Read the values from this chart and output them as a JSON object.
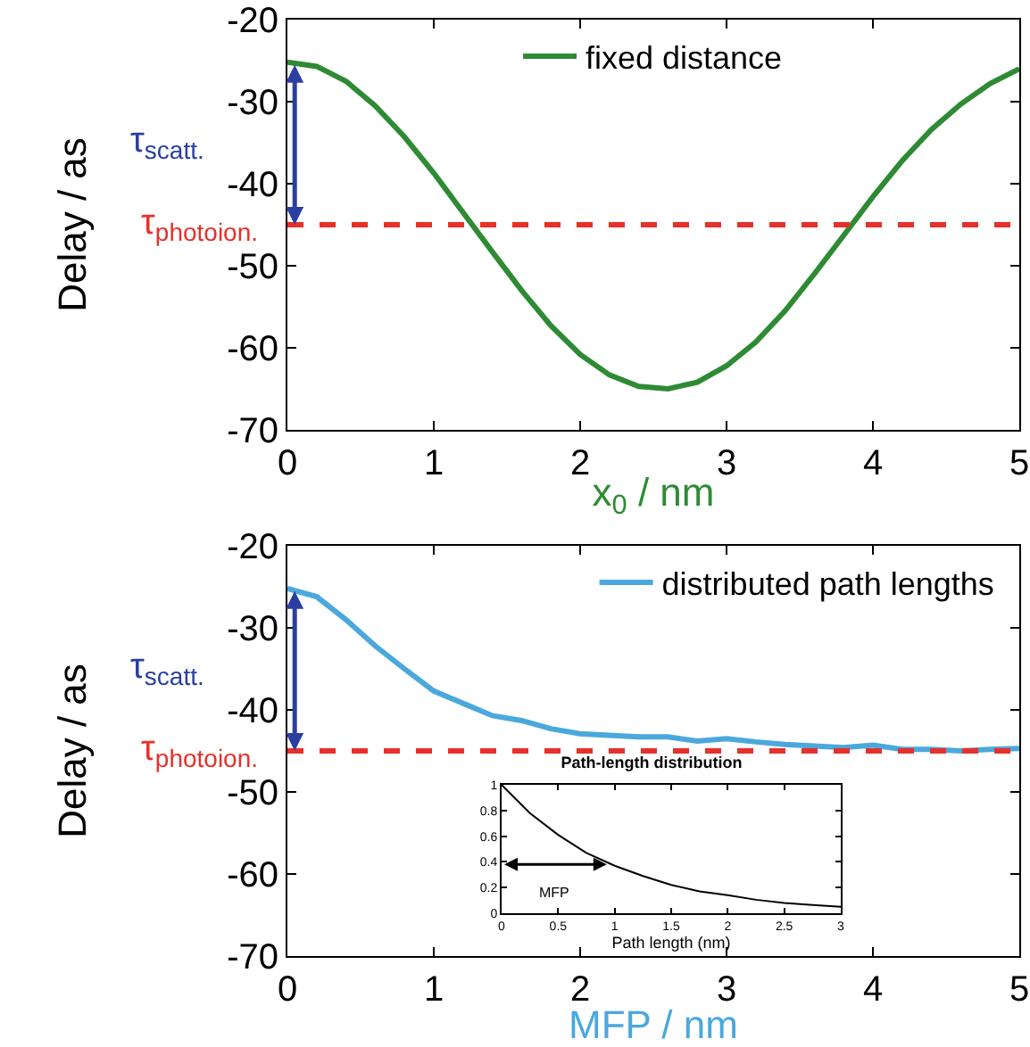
{
  "chart_data": [
    {
      "type": "line",
      "xlabel": "x$_{0}$ / nm",
      "ylabel": "Delay / as",
      "x": [
        0,
        0.2,
        0.4,
        0.6,
        0.8,
        1,
        1.2,
        1.4,
        1.6,
        1.8,
        2,
        2.2,
        2.4,
        2.6,
        2.8,
        3,
        3.2,
        3.4,
        3.6,
        3.8,
        4,
        4.2,
        4.4,
        4.6,
        4.8,
        5
      ],
      "series": [
        {
          "name": "fixed distance",
          "color": "#2e8b34",
          "values": [
            -25.2,
            -25.7,
            -27.5,
            -30.5,
            -34.3,
            -38.7,
            -43.5,
            -48.3,
            -53,
            -57.3,
            -60.8,
            -63.3,
            -64.7,
            -65,
            -64.2,
            -62.2,
            -59.3,
            -55.5,
            -51,
            -46.3,
            -41.6,
            -37.2,
            -33.4,
            -30.3,
            -27.8,
            -26
          ]
        }
      ],
      "ref_lines": [
        {
          "axis": "y",
          "value": -45,
          "label": "τ$_{photoion.}$",
          "color": "#e8302a",
          "line_style": "dashed"
        }
      ],
      "annotations": [
        "τ$_{scatt.}$"
      ],
      "xlim": [
        0,
        5
      ],
      "ylim": [
        -70,
        -20
      ],
      "xticks": [
        0,
        1,
        2,
        3,
        4,
        5
      ],
      "yticks": [
        -70,
        -60,
        -50,
        -40,
        -30,
        -20
      ],
      "legend": "top",
      "line_style": "solid",
      "marker": "none"
    },
    {
      "type": "line",
      "xlabel": "MFP / nm",
      "ylabel": "Delay / as",
      "x": [
        0,
        0.2,
        0.4,
        0.6,
        0.8,
        1,
        1.2,
        1.4,
        1.6,
        1.8,
        2,
        2.2,
        2.4,
        2.6,
        2.8,
        3,
        3.2,
        3.4,
        3.6,
        3.8,
        4,
        4.2,
        4.4,
        4.6,
        4.8,
        5
      ],
      "series": [
        {
          "name": "distributed path lengths",
          "color": "#4aa8dc",
          "values": [
            -25.2,
            -26.2,
            -29,
            -32.2,
            -35,
            -37.7,
            -39.2,
            -40.7,
            -41.3,
            -42.3,
            -42.9,
            -43.1,
            -43.3,
            -43.3,
            -43.8,
            -43.5,
            -43.9,
            -44.2,
            -44.4,
            -44.6,
            -44.3,
            -44.8,
            -44.8,
            -45,
            -44.8,
            -44.7
          ]
        }
      ],
      "ref_lines": [
        {
          "axis": "y",
          "value": -45,
          "label": "τ$_{photoion.}$",
          "color": "#e8302a",
          "line_style": "dashed"
        }
      ],
      "annotations": [
        "τ$_{scatt.}$"
      ],
      "xlim": [
        0,
        5
      ],
      "ylim": [
        -70,
        -20
      ],
      "xticks": [
        0,
        1,
        2,
        3,
        4,
        5
      ],
      "yticks": [
        -70,
        -60,
        -50,
        -40,
        -30,
        -20
      ],
      "legend": "top right",
      "line_style": "solid",
      "marker": "none"
    },
    {
      "type": "line",
      "title": "Path-length distribution",
      "xlabel": "Path length (nm)",
      "x": [
        0,
        0.25,
        0.5,
        0.75,
        1,
        1.25,
        1.5,
        1.75,
        2,
        2.25,
        2.5,
        2.75,
        3
      ],
      "series": [
        {
          "color": "#000000",
          "values": [
            1,
            0.78,
            0.61,
            0.47,
            0.37,
            0.29,
            0.22,
            0.17,
            0.14,
            0.105,
            0.08,
            0.064,
            0.05
          ]
        }
      ],
      "annotations": [
        {
          "text": "MFP",
          "x": 0.93,
          "y": 0.38
        }
      ],
      "xlim": [
        0,
        3
      ],
      "ylim": [
        0,
        1
      ],
      "xticks": [
        0,
        0.5,
        1,
        1.5,
        2,
        2.5,
        3
      ],
      "yticks": [
        0,
        0.2,
        0.4,
        0.6,
        0.8,
        1
      ],
      "line_style": "solid",
      "marker": "none"
    }
  ]
}
